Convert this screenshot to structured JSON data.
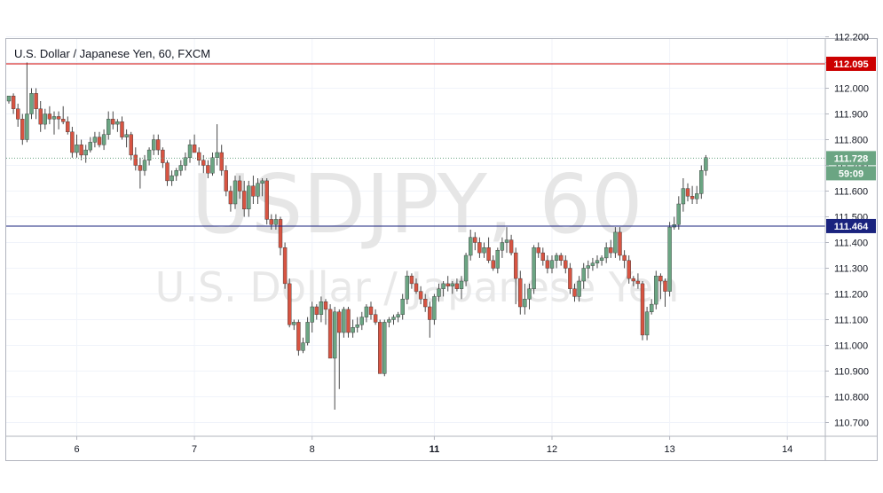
{
  "window": {
    "symbol_title": "U.S. Dollar / Japanese Yen, 60, FXCM"
  },
  "watermark": {
    "ticker": "USDJPY, 60",
    "name": "U.S. Dollar / Japanese Yen"
  },
  "colors": {
    "up": "#6ba583",
    "down": "#d75442",
    "wick": "#4a4a4a",
    "resistance_line": "#cc0000",
    "support_line": "#1a237e",
    "last_price_tag": "#6ba583",
    "countdown_tag": "#6ba583"
  },
  "levels": {
    "resistance": {
      "price": 112.095,
      "label": "112.095"
    },
    "support": {
      "price": 111.464,
      "label": "111.464"
    },
    "last_price": {
      "price": 111.728,
      "label": "111.728"
    },
    "countdown": "59:09"
  },
  "chart_data": {
    "type": "candlestick",
    "title": "U.S. Dollar / Japanese Yen, 60, FXCM",
    "ylim": [
      110.65,
      112.23
    ],
    "y_ticks": [
      "112.200",
      "112.100",
      "112.000",
      "111.900",
      "111.800",
      "111.700",
      "111.600",
      "111.500",
      "111.400",
      "111.300",
      "111.200",
      "111.100",
      "111.000",
      "110.900",
      "110.800",
      "110.700"
    ],
    "x_ticks": [
      {
        "label": "6",
        "bar": 15,
        "bold": false
      },
      {
        "label": "7",
        "bar": 41,
        "bold": false
      },
      {
        "label": "8",
        "bar": 67,
        "bold": false
      },
      {
        "label": "11",
        "bar": 94,
        "bold": true
      },
      {
        "label": "12",
        "bar": 120,
        "bold": false
      },
      {
        "label": "13",
        "bar": 146,
        "bold": false
      },
      {
        "label": "14",
        "bar": 172,
        "bold": false
      }
    ],
    "grid": true,
    "candles": [
      [
        111.95,
        111.97,
        111.94,
        111.97
      ],
      [
        111.97,
        111.98,
        111.9,
        111.92
      ],
      [
        111.92,
        111.94,
        111.85,
        111.88
      ],
      [
        111.88,
        111.9,
        111.78,
        111.8
      ],
      [
        111.8,
        112.1,
        111.79,
        111.9
      ],
      [
        111.9,
        112.0,
        111.88,
        111.98
      ],
      [
        111.98,
        112.0,
        111.88,
        111.92
      ],
      [
        111.92,
        111.95,
        111.83,
        111.86
      ],
      [
        111.86,
        111.92,
        111.84,
        111.9
      ],
      [
        111.9,
        111.93,
        111.86,
        111.88
      ],
      [
        111.88,
        111.91,
        111.82,
        111.89
      ],
      [
        111.89,
        111.91,
        111.84,
        111.88
      ],
      [
        111.88,
        111.93,
        111.86,
        111.87
      ],
      [
        111.87,
        111.89,
        111.82,
        111.83
      ],
      [
        111.83,
        111.85,
        111.73,
        111.75
      ],
      [
        111.75,
        111.82,
        111.73,
        111.78
      ],
      [
        111.78,
        111.8,
        111.72,
        111.74
      ],
      [
        111.74,
        111.78,
        111.71,
        111.76
      ],
      [
        111.76,
        111.81,
        111.75,
        111.79
      ],
      [
        111.79,
        111.83,
        111.77,
        111.81
      ],
      [
        111.81,
        111.83,
        111.77,
        111.78
      ],
      [
        111.78,
        111.84,
        111.76,
        111.82
      ],
      [
        111.82,
        111.91,
        111.8,
        111.88
      ],
      [
        111.88,
        111.91,
        111.84,
        111.86
      ],
      [
        111.86,
        111.88,
        111.83,
        111.87
      ],
      [
        111.87,
        111.89,
        111.8,
        111.81
      ],
      [
        111.81,
        111.84,
        111.77,
        111.82
      ],
      [
        111.82,
        111.83,
        111.72,
        111.74
      ],
      [
        111.74,
        111.77,
        111.68,
        111.7
      ],
      [
        111.7,
        111.73,
        111.61,
        111.68
      ],
      [
        111.68,
        111.74,
        111.66,
        111.72
      ],
      [
        111.72,
        111.77,
        111.7,
        111.76
      ],
      [
        111.76,
        111.82,
        111.74,
        111.8
      ],
      [
        111.8,
        111.82,
        111.74,
        111.76
      ],
      [
        111.76,
        111.77,
        111.69,
        111.71
      ],
      [
        111.71,
        111.72,
        111.62,
        111.64
      ],
      [
        111.64,
        111.68,
        111.62,
        111.66
      ],
      [
        111.66,
        111.69,
        111.64,
        111.68
      ],
      [
        111.68,
        111.72,
        111.66,
        111.7
      ],
      [
        111.7,
        111.75,
        111.68,
        111.73
      ],
      [
        111.73,
        111.8,
        111.71,
        111.78
      ],
      [
        111.78,
        111.82,
        111.75,
        111.75
      ],
      [
        111.75,
        111.77,
        111.7,
        111.72
      ],
      [
        111.72,
        111.74,
        111.67,
        111.7
      ],
      [
        111.7,
        111.72,
        111.65,
        111.67
      ],
      [
        111.67,
        111.75,
        111.66,
        111.73
      ],
      [
        111.73,
        111.86,
        111.7,
        111.75
      ],
      [
        111.75,
        111.78,
        111.66,
        111.68
      ],
      [
        111.68,
        111.7,
        111.58,
        111.6
      ],
      [
        111.6,
        111.62,
        111.52,
        111.55
      ],
      [
        111.55,
        111.66,
        111.53,
        111.64
      ],
      [
        111.64,
        111.66,
        111.57,
        111.6
      ],
      [
        111.6,
        111.64,
        111.5,
        111.53
      ],
      [
        111.53,
        111.64,
        111.5,
        111.62
      ],
      [
        111.62,
        111.66,
        111.55,
        111.58
      ],
      [
        111.58,
        111.65,
        111.55,
        111.63
      ],
      [
        111.63,
        111.65,
        111.58,
        111.64
      ],
      [
        111.64,
        111.65,
        111.47,
        111.49
      ],
      [
        111.49,
        111.51,
        111.45,
        111.47
      ],
      [
        111.47,
        111.51,
        111.45,
        111.49
      ],
      [
        111.49,
        111.5,
        111.35,
        111.38
      ],
      [
        111.38,
        111.4,
        111.22,
        111.24
      ],
      [
        111.24,
        111.26,
        111.07,
        111.08
      ],
      [
        111.08,
        111.1,
        111.06,
        111.09
      ],
      [
        111.09,
        111.1,
        110.96,
        110.98
      ],
      [
        110.98,
        111.03,
        110.97,
        111.01
      ],
      [
        111.01,
        111.11,
        111.0,
        111.09
      ],
      [
        111.09,
        111.17,
        111.05,
        111.15
      ],
      [
        111.15,
        111.16,
        111.1,
        111.12
      ],
      [
        111.12,
        111.19,
        111.09,
        111.17
      ],
      [
        111.17,
        111.18,
        111.08,
        111.14
      ],
      [
        111.14,
        111.16,
        110.95,
        110.95
      ],
      [
        110.95,
        111.15,
        110.75,
        111.13
      ],
      [
        111.13,
        111.14,
        110.83,
        111.05
      ],
      [
        111.05,
        111.15,
        111.03,
        111.14
      ],
      [
        111.14,
        111.15,
        111.03,
        111.05
      ],
      [
        111.05,
        111.1,
        111.03,
        111.07
      ],
      [
        111.07,
        111.11,
        111.05,
        111.08
      ],
      [
        111.08,
        111.13,
        111.06,
        111.11
      ],
      [
        111.11,
        111.16,
        111.09,
        111.15
      ],
      [
        111.15,
        111.17,
        111.1,
        111.12
      ],
      [
        111.12,
        111.14,
        111.08,
        111.09
      ],
      [
        111.09,
        111.1,
        110.89,
        110.89
      ],
      [
        110.89,
        111.1,
        110.88,
        111.09
      ],
      [
        111.09,
        111.11,
        111.07,
        111.1
      ],
      [
        111.1,
        111.12,
        111.08,
        111.11
      ],
      [
        111.11,
        111.13,
        111.09,
        111.12
      ],
      [
        111.12,
        111.2,
        111.1,
        111.18
      ],
      [
        111.18,
        111.29,
        111.16,
        111.27
      ],
      [
        111.27,
        111.28,
        111.22,
        111.24
      ],
      [
        111.24,
        111.26,
        111.2,
        111.21
      ],
      [
        111.21,
        111.23,
        111.16,
        111.18
      ],
      [
        111.18,
        111.2,
        111.13,
        111.15
      ],
      [
        111.15,
        111.17,
        111.03,
        111.1
      ],
      [
        111.1,
        111.2,
        111.08,
        111.19
      ],
      [
        111.19,
        111.24,
        111.17,
        111.22
      ],
      [
        111.22,
        111.25,
        111.19,
        111.24
      ],
      [
        111.24,
        111.27,
        111.21,
        111.23
      ],
      [
        111.23,
        111.25,
        111.2,
        111.24
      ],
      [
        111.24,
        111.26,
        111.21,
        111.22
      ],
      [
        111.22,
        111.27,
        111.18,
        111.25
      ],
      [
        111.25,
        111.36,
        111.23,
        111.35
      ],
      [
        111.35,
        111.45,
        111.33,
        111.42
      ],
      [
        111.42,
        111.44,
        111.37,
        111.4
      ],
      [
        111.4,
        111.42,
        111.34,
        111.36
      ],
      [
        111.36,
        111.4,
        111.34,
        111.38
      ],
      [
        111.38,
        111.42,
        111.32,
        111.33
      ],
      [
        111.33,
        111.35,
        111.29,
        111.3
      ],
      [
        111.3,
        111.38,
        111.28,
        111.37
      ],
      [
        111.37,
        111.42,
        111.34,
        111.4
      ],
      [
        111.4,
        111.46,
        111.36,
        111.41
      ],
      [
        111.41,
        111.43,
        111.35,
        111.36
      ],
      [
        111.36,
        111.38,
        111.16,
        111.26
      ],
      [
        111.26,
        111.29,
        111.12,
        111.15
      ],
      [
        111.15,
        111.24,
        111.12,
        111.18
      ],
      [
        111.18,
        111.24,
        111.14,
        111.22
      ],
      [
        111.22,
        111.39,
        111.2,
        111.38
      ],
      [
        111.38,
        111.4,
        111.34,
        111.36
      ],
      [
        111.36,
        111.38,
        111.31,
        111.33
      ],
      [
        111.33,
        111.35,
        111.28,
        111.3
      ],
      [
        111.3,
        111.35,
        111.28,
        111.33
      ],
      [
        111.33,
        111.36,
        111.3,
        111.35
      ],
      [
        111.35,
        111.36,
        111.31,
        111.33
      ],
      [
        111.33,
        111.35,
        111.28,
        111.3
      ],
      [
        111.3,
        111.32,
        111.2,
        111.22
      ],
      [
        111.22,
        111.24,
        111.17,
        111.19
      ],
      [
        111.19,
        111.27,
        111.17,
        111.25
      ],
      [
        111.25,
        111.32,
        111.22,
        111.3
      ],
      [
        111.3,
        111.33,
        111.26,
        111.31
      ],
      [
        111.31,
        111.34,
        111.29,
        111.32
      ],
      [
        111.32,
        111.35,
        111.3,
        111.33
      ],
      [
        111.33,
        111.35,
        111.31,
        111.34
      ],
      [
        111.34,
        111.4,
        111.32,
        111.38
      ],
      [
        111.38,
        111.41,
        111.34,
        111.36
      ],
      [
        111.36,
        111.46,
        111.34,
        111.44
      ],
      [
        111.44,
        111.46,
        111.33,
        111.35
      ],
      [
        111.35,
        111.37,
        111.3,
        111.33
      ],
      [
        111.33,
        111.35,
        111.24,
        111.26
      ],
      [
        111.26,
        111.27,
        111.23,
        111.25
      ],
      [
        111.25,
        111.28,
        111.22,
        111.24
      ],
      [
        111.24,
        111.25,
        111.02,
        111.04
      ],
      [
        111.04,
        111.15,
        111.02,
        111.13
      ],
      [
        111.13,
        111.18,
        111.12,
        111.16
      ],
      [
        111.16,
        111.29,
        111.14,
        111.27
      ],
      [
        111.27,
        111.28,
        111.18,
        111.25
      ],
      [
        111.25,
        111.26,
        111.15,
        111.21
      ],
      [
        111.21,
        111.48,
        111.19,
        111.46
      ],
      [
        111.46,
        111.5,
        111.45,
        111.47
      ],
      [
        111.47,
        111.58,
        111.45,
        111.55
      ],
      [
        111.55,
        111.65,
        111.52,
        111.61
      ],
      [
        111.61,
        111.63,
        111.56,
        111.58
      ],
      [
        111.58,
        111.62,
        111.55,
        111.57
      ],
      [
        111.57,
        111.62,
        111.55,
        111.59
      ],
      [
        111.59,
        111.7,
        111.57,
        111.68
      ],
      [
        111.68,
        111.74,
        111.66,
        111.73
      ]
    ]
  }
}
